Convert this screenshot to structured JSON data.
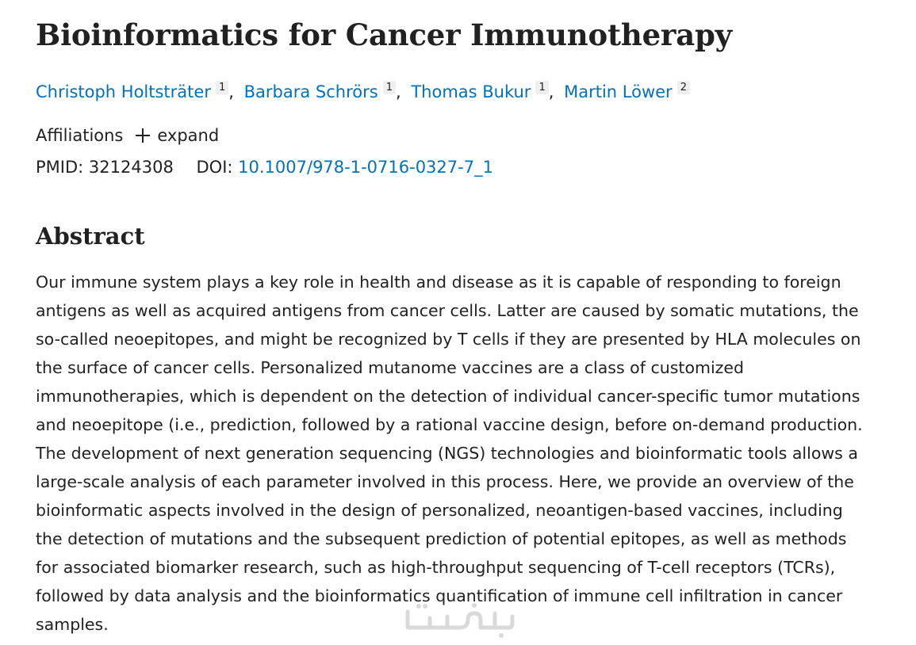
{
  "article": {
    "title": "Bioinformatics for Cancer Immunotherapy",
    "authors": [
      {
        "name": "Christoph Holtsträter",
        "affiliation": "1"
      },
      {
        "name": "Barbara Schrörs",
        "affiliation": "1"
      },
      {
        "name": "Thomas Bukur",
        "affiliation": "1"
      },
      {
        "name": "Martin Löwer",
        "affiliation": "2"
      }
    ],
    "affiliations_label": "Affiliations",
    "expand_label": "expand",
    "pmid_label": "PMID:",
    "pmid": "32124308",
    "doi_label": "DOI:",
    "doi": "10.1007/978-1-0716-0327-7_1"
  },
  "abstract": {
    "heading": "Abstract",
    "lines": [
      "Our immune system plays a key role in health and disease as it is capable of responding to foreign",
      "antigens as well as acquired antigens from cancer cells. Latter are caused by somatic mutations, the",
      "so-called neoepitopes, and might be recognized by T cells if they are presented by HLA molecules on",
      "the surface of cancer cells. Personalized mutanome vaccines are a class of customized",
      "immunotherapies, which is dependent on the detection of individual cancer-specific tumor mutations",
      "and neoepitope (i.e., prediction, followed by a rational vaccine design, before on-demand production.",
      "The development of next generation sequencing (NGS) technologies and bioinformatic tools allows a",
      "large-scale analysis of each parameter involved in this process. Here, we provide an overview of the",
      "bioinformatic aspects involved in the design of personalized, neoantigen-based vaccines, including",
      "the detection of mutations and the subsequent prediction of potential epitopes, as well as methods",
      "for associated biomarker research, such as high-throughput sequencing of T-cell receptors (TCRs),",
      "followed by data analysis and the bioinformatics quantification of immune cell infiltration in cancer",
      "samples."
    ]
  },
  "watermark": {
    "text": "خمسات",
    "color": "#d9d9d9"
  }
}
